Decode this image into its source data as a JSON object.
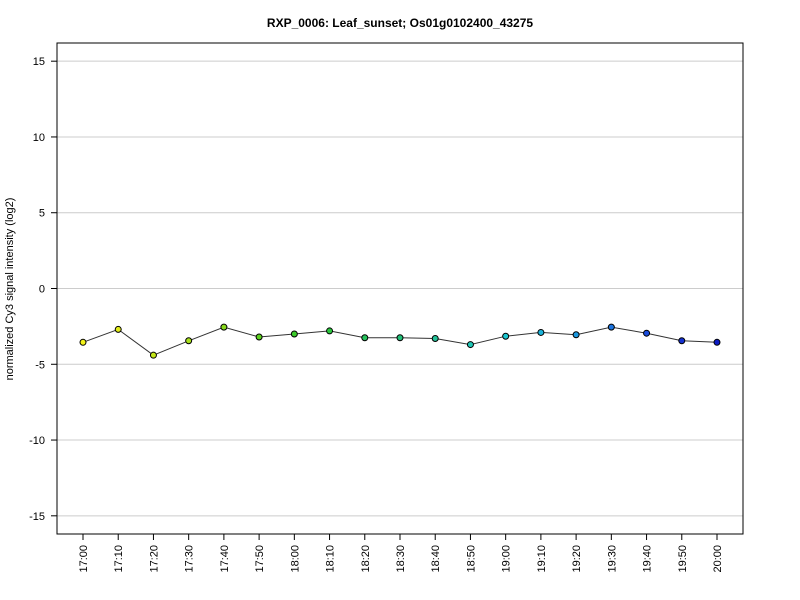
{
  "chart_data": {
    "type": "line",
    "title": "RXP_0006: Leaf_sunset; Os01g0102400_43275",
    "xlabel": "",
    "ylabel": "normalized Cy3 signal intensity (log2)",
    "ylim": [
      -16.2,
      16.2
    ],
    "yticks": [
      -15,
      -10,
      -5,
      0,
      5,
      10,
      15
    ],
    "ytick_labels": [
      "-15",
      "-10",
      "-5",
      "0",
      "5",
      "10",
      "15"
    ],
    "grid": "horizontal",
    "categories": [
      "17:00",
      "17:10",
      "17:20",
      "17:30",
      "17:40",
      "17:50",
      "18:00",
      "18:10",
      "18:20",
      "18:30",
      "18:40",
      "18:50",
      "19:00",
      "19:10",
      "19:20",
      "19:30",
      "19:40",
      "19:50",
      "20:00"
    ],
    "series": [
      {
        "values": [
          -3.55,
          -2.7,
          -4.4,
          -3.45,
          -2.55,
          -3.2,
          -3.0,
          -2.8,
          -3.25,
          -3.25,
          -3.3,
          -3.7,
          -3.15,
          -2.9,
          -3.05,
          -2.55,
          -2.95,
          -3.45,
          -3.55
        ],
        "line_color": "#333333",
        "point_colors": [
          "#f2f21b",
          "#e2ec1a",
          "#c4e619",
          "#a8e01c",
          "#88d91c",
          "#5bd11f",
          "#3bcb2a",
          "#2ac63d",
          "#26c25b",
          "#22bf78",
          "#22c197",
          "#1fc7b6",
          "#1cc6d0",
          "#1ab3da",
          "#1c98de",
          "#1c74e0",
          "#1a4cdc",
          "#1430d0",
          "#0c1ac4"
        ]
      }
    ]
  }
}
